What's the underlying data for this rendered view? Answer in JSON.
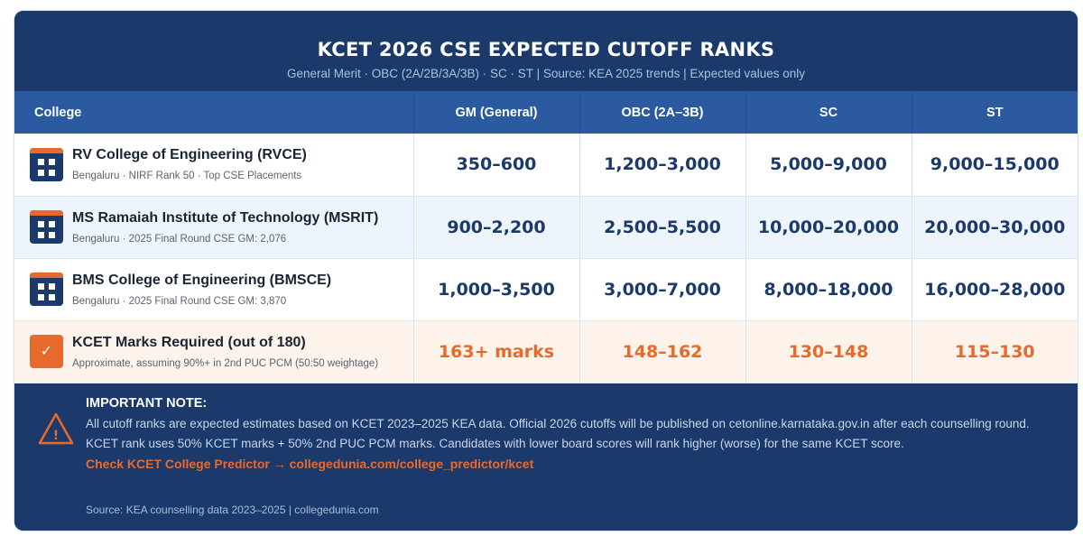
{
  "header": {
    "title": "KCET 2026 CSE EXPECTED CUTOFF RANKS",
    "subtitle": "General Merit · OBC (2A/2B/3A/3B) · SC · ST | Source: KEA 2025 trends | Expected values only"
  },
  "table": {
    "columns": [
      "College",
      "GM (General)",
      "OBC (2A–3B)",
      "SC",
      "ST"
    ],
    "rows": [
      {
        "icon": "calendar-icon",
        "name": "RV College of Engineering (RVCE)",
        "meta": "Bengaluru · NIRF Rank 50 · Top CSE Placements",
        "values": [
          "350–600",
          "1,200–3,000",
          "5,000–9,000",
          "9,000–15,000"
        ]
      },
      {
        "icon": "calendar-icon",
        "name": "MS Ramaiah Institute of Technology (MSRIT)",
        "meta": "Bengaluru · 2025 Final Round CSE GM: 2,076",
        "values": [
          "900–2,200",
          "2,500–5,500",
          "10,000–20,000",
          "20,000–30,000"
        ]
      },
      {
        "icon": "calendar-icon",
        "name": "BMS College of Engineering (BMSCE)",
        "meta": "Bengaluru · 2025 Final Round CSE GM: 3,870",
        "values": [
          "1,000–3,500",
          "3,000–7,000",
          "8,000–18,000",
          "16,000–28,000"
        ]
      }
    ],
    "marks_row": {
      "icon": "checkmark-icon",
      "check_glyph": "✓",
      "name": "KCET Marks Required (out of 180)",
      "meta": "Approximate, assuming 90%+ in 2nd PUC PCM (50:50 weightage)",
      "values": [
        "163+ marks",
        "148–162",
        "130–148",
        "115–130"
      ]
    }
  },
  "note": {
    "icon": "warning-icon",
    "icon_glyph": "!",
    "title": "IMPORTANT NOTE:",
    "line1": "All cutoff ranks are expected estimates based on KCET 2023–2025 KEA data. Official 2026 cutoffs will be published on cetonline.karnataka.gov.in after each counselling round.",
    "line2": "KCET rank uses 50% KCET marks + 50% 2nd PUC PCM marks. Candidates with lower board scores will rank higher (worse) for the same KCET score.",
    "link": "Check KCET College Predictor → collegedunia.com/college_predictor/kcet",
    "source": "Source: KEA counselling data 2023–2025 | collegedunia.com"
  },
  "colors": {
    "navy": "#1b3a6b",
    "header_blue": "#2c5aa0",
    "accent_orange": "#e8692c",
    "row_alt": "#eef4fc",
    "marks_row_bg": "#fdf3ea"
  }
}
